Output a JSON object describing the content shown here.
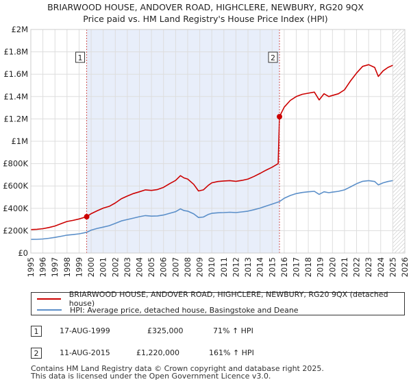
{
  "title_line1": "BRIARWOOD HOUSE, ANDOVER ROAD, HIGHCLERE, NEWBURY, RG20 9QX",
  "title_line2": "Price paid vs. HM Land Registry's House Price Index (HPI)",
  "colors": {
    "property": "#cc0000",
    "hpi": "#5b8fc9",
    "shade": "#e8eefa",
    "marker_line": "#d05050"
  },
  "chart_data": {
    "type": "line",
    "title": "BRIARWOOD HOUSE, ANDOVER ROAD, HIGHCLERE, NEWBURY, RG20 9QX — Price paid vs. HM Land Registry's House Price Index (HPI)",
    "xlabel": "",
    "ylabel": "",
    "xlim": [
      1995,
      2026
    ],
    "ylim": [
      0,
      2000000
    ],
    "y_ticks": [
      {
        "value": 0,
        "label": "£0"
      },
      {
        "value": 200000,
        "label": "£200K"
      },
      {
        "value": 400000,
        "label": "£400K"
      },
      {
        "value": 600000,
        "label": "£600K"
      },
      {
        "value": 800000,
        "label": "£800K"
      },
      {
        "value": 1000000,
        "label": "£1M"
      },
      {
        "value": 1200000,
        "label": "£1.2M"
      },
      {
        "value": 1400000,
        "label": "£1.4M"
      },
      {
        "value": 1600000,
        "label": "£1.6M"
      },
      {
        "value": 1800000,
        "label": "£1.8M"
      },
      {
        "value": 2000000,
        "label": "£2M"
      }
    ],
    "x_ticks": [
      "1995",
      "1996",
      "1997",
      "1998",
      "1999",
      "2000",
      "2001",
      "2002",
      "2003",
      "2004",
      "2005",
      "2006",
      "2007",
      "2008",
      "2009",
      "2010",
      "2011",
      "2012",
      "2013",
      "2014",
      "2015",
      "2016",
      "2017",
      "2018",
      "2019",
      "2020",
      "2021",
      "2022",
      "2023",
      "2024",
      "2025",
      "2026"
    ],
    "shaded_period": [
      1999.63,
      2015.61
    ],
    "hatched_from": 2025.0,
    "series": [
      {
        "name": "BRIARWOOD HOUSE, ANDOVER ROAD, HIGHCLERE, NEWBURY, RG20 9QX (detached house)",
        "color": "#cc0000",
        "points": [
          [
            1995.0,
            210000
          ],
          [
            1995.5,
            212000
          ],
          [
            1996.0,
            218000
          ],
          [
            1996.5,
            228000
          ],
          [
            1997.0,
            242000
          ],
          [
            1997.5,
            262000
          ],
          [
            1998.0,
            282000
          ],
          [
            1998.5,
            292000
          ],
          [
            1999.0,
            305000
          ],
          [
            1999.63,
            325000
          ],
          [
            2000.0,
            352000
          ],
          [
            2000.5,
            378000
          ],
          [
            2001.0,
            402000
          ],
          [
            2001.5,
            418000
          ],
          [
            2002.0,
            448000
          ],
          [
            2002.5,
            485000
          ],
          [
            2003.0,
            510000
          ],
          [
            2003.5,
            532000
          ],
          [
            2004.0,
            548000
          ],
          [
            2004.5,
            565000
          ],
          [
            2005.0,
            560000
          ],
          [
            2005.5,
            568000
          ],
          [
            2006.0,
            588000
          ],
          [
            2006.5,
            620000
          ],
          [
            2007.0,
            650000
          ],
          [
            2007.4,
            692000
          ],
          [
            2007.7,
            672000
          ],
          [
            2008.0,
            662000
          ],
          [
            2008.5,
            615000
          ],
          [
            2008.9,
            555000
          ],
          [
            2009.3,
            565000
          ],
          [
            2009.7,
            605000
          ],
          [
            2010.0,
            628000
          ],
          [
            2010.5,
            640000
          ],
          [
            2011.0,
            645000
          ],
          [
            2011.5,
            648000
          ],
          [
            2012.0,
            642000
          ],
          [
            2012.5,
            650000
          ],
          [
            2013.0,
            662000
          ],
          [
            2013.5,
            685000
          ],
          [
            2014.0,
            712000
          ],
          [
            2014.5,
            742000
          ],
          [
            2015.0,
            768000
          ],
          [
            2015.5,
            800000
          ],
          [
            2015.61,
            1220000
          ],
          [
            2016.0,
            1305000
          ],
          [
            2016.5,
            1365000
          ],
          [
            2017.0,
            1400000
          ],
          [
            2017.5,
            1420000
          ],
          [
            2018.0,
            1430000
          ],
          [
            2018.5,
            1440000
          ],
          [
            2018.9,
            1370000
          ],
          [
            2019.3,
            1425000
          ],
          [
            2019.7,
            1400000
          ],
          [
            2020.0,
            1410000
          ],
          [
            2020.5,
            1425000
          ],
          [
            2021.0,
            1460000
          ],
          [
            2021.5,
            1540000
          ],
          [
            2022.0,
            1610000
          ],
          [
            2022.5,
            1670000
          ],
          [
            2023.0,
            1685000
          ],
          [
            2023.5,
            1660000
          ],
          [
            2023.8,
            1580000
          ],
          [
            2024.2,
            1630000
          ],
          [
            2024.6,
            1660000
          ],
          [
            2025.0,
            1680000
          ]
        ]
      },
      {
        "name": "HPI: Average price, detached house, Basingstoke and Deane",
        "color": "#5b8fc9",
        "points": [
          [
            1995.0,
            122000
          ],
          [
            1995.5,
            123000
          ],
          [
            1996.0,
            126000
          ],
          [
            1996.5,
            132000
          ],
          [
            1997.0,
            140000
          ],
          [
            1997.5,
            150000
          ],
          [
            1998.0,
            160000
          ],
          [
            1998.5,
            165000
          ],
          [
            1999.0,
            172000
          ],
          [
            1999.63,
            185000
          ],
          [
            2000.0,
            205000
          ],
          [
            2000.5,
            220000
          ],
          [
            2001.0,
            232000
          ],
          [
            2001.5,
            245000
          ],
          [
            2002.0,
            265000
          ],
          [
            2002.5,
            287000
          ],
          [
            2003.0,
            300000
          ],
          [
            2003.5,
            312000
          ],
          [
            2004.0,
            325000
          ],
          [
            2004.5,
            335000
          ],
          [
            2005.0,
            330000
          ],
          [
            2005.5,
            332000
          ],
          [
            2006.0,
            340000
          ],
          [
            2006.5,
            355000
          ],
          [
            2007.0,
            370000
          ],
          [
            2007.4,
            395000
          ],
          [
            2007.7,
            380000
          ],
          [
            2008.0,
            375000
          ],
          [
            2008.5,
            350000
          ],
          [
            2008.9,
            318000
          ],
          [
            2009.3,
            322000
          ],
          [
            2009.7,
            345000
          ],
          [
            2010.0,
            355000
          ],
          [
            2010.5,
            360000
          ],
          [
            2011.0,
            362000
          ],
          [
            2011.5,
            365000
          ],
          [
            2012.0,
            362000
          ],
          [
            2012.5,
            368000
          ],
          [
            2013.0,
            375000
          ],
          [
            2013.5,
            388000
          ],
          [
            2014.0,
            402000
          ],
          [
            2014.5,
            420000
          ],
          [
            2015.0,
            438000
          ],
          [
            2015.61,
            460000
          ],
          [
            2016.0,
            490000
          ],
          [
            2016.5,
            515000
          ],
          [
            2017.0,
            532000
          ],
          [
            2017.5,
            542000
          ],
          [
            2018.0,
            548000
          ],
          [
            2018.5,
            552000
          ],
          [
            2018.9,
            525000
          ],
          [
            2019.3,
            548000
          ],
          [
            2019.7,
            540000
          ],
          [
            2020.0,
            545000
          ],
          [
            2020.5,
            552000
          ],
          [
            2021.0,
            565000
          ],
          [
            2021.5,
            592000
          ],
          [
            2022.0,
            620000
          ],
          [
            2022.5,
            642000
          ],
          [
            2023.0,
            648000
          ],
          [
            2023.5,
            640000
          ],
          [
            2023.8,
            610000
          ],
          [
            2024.2,
            628000
          ],
          [
            2024.6,
            640000
          ],
          [
            2025.0,
            648000
          ]
        ]
      }
    ],
    "markers": [
      {
        "label": "1",
        "x": 1999.63,
        "y": 325000
      },
      {
        "label": "2",
        "x": 2015.61,
        "y": 1220000
      }
    ]
  },
  "legend": {
    "property_label": "BRIARWOOD HOUSE, ANDOVER ROAD, HIGHCLERE, NEWBURY, RG20 9QX (detached house)",
    "hpi_label": "HPI: Average price, detached house, Basingstoke and Deane"
  },
  "transactions": [
    {
      "num": "1",
      "date": "17-AUG-1999",
      "price": "£325,000",
      "hpi": "71% ↑ HPI"
    },
    {
      "num": "2",
      "date": "11-AUG-2015",
      "price": "£1,220,000",
      "hpi": "161% ↑ HPI"
    }
  ],
  "footer_line1": "Contains HM Land Registry data © Crown copyright and database right 2025.",
  "footer_line2": "This data is licensed under the Open Government Licence v3.0."
}
